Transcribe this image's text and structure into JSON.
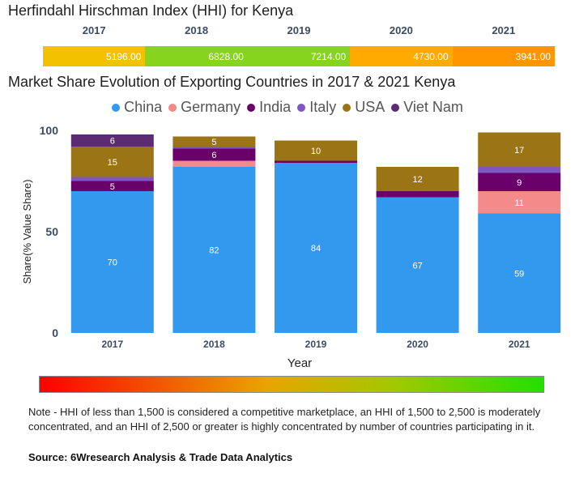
{
  "hhi": {
    "title": "Herfindahl Hirschman Index (HHI) for Kenya",
    "years": [
      "2017",
      "2018",
      "2019",
      "2020",
      "2021"
    ],
    "values": [
      "5196.00",
      "6828.00",
      "7214.00",
      "4730.00",
      "3941.00"
    ],
    "colors": [
      "#f2c200",
      "#86d41e",
      "#86d41e",
      "#ffaa00",
      "#ff9600"
    ]
  },
  "chart_data": {
    "type": "stacked-bar",
    "title": "Market Share Evolution of Exporting Countries in 2017 & 2021 Kenya",
    "xlabel": "Year",
    "ylabel": "Share(% Value Share)",
    "ylim": [
      0,
      100
    ],
    "yticks": [
      "0",
      "50",
      "100"
    ],
    "categories": [
      "2017",
      "2018",
      "2019",
      "2020",
      "2021"
    ],
    "series": [
      {
        "name": "China",
        "color": "#3399ee",
        "values": [
          70,
          82,
          84,
          67,
          59
        ]
      },
      {
        "name": "Germany",
        "color": "#f48a8a",
        "values": [
          0,
          3,
          0,
          0,
          11
        ]
      },
      {
        "name": "India",
        "color": "#6a006a",
        "values": [
          5,
          6,
          1,
          3,
          9
        ]
      },
      {
        "name": "Italy",
        "color": "#7e57c2",
        "values": [
          2,
          1,
          0,
          0,
          3
        ]
      },
      {
        "name": "USA",
        "color": "#9b7415",
        "values": [
          15,
          5,
          10,
          12,
          17
        ]
      },
      {
        "name": "Viet Nam",
        "color": "#5b2c73",
        "values": [
          6,
          0,
          0,
          0,
          0
        ]
      }
    ],
    "segment_labels": [
      {
        "values": [
          "70",
          "82",
          "84",
          "67",
          "59"
        ]
      },
      {
        "values": [
          "",
          "",
          "",
          "",
          "11"
        ]
      },
      {
        "values": [
          "5",
          "6",
          "",
          "",
          "9"
        ]
      },
      {
        "values": [
          "",
          "",
          "",
          "",
          ""
        ]
      },
      {
        "values": [
          "15",
          "5",
          "10",
          "12",
          "17"
        ]
      },
      {
        "values": [
          "6",
          "",
          "",
          "",
          ""
        ]
      }
    ]
  },
  "scale": {
    "colors": [
      "#ff0000",
      "#e8a400",
      "#a4c800",
      "#22e000"
    ]
  },
  "note": "Note - HHI of less than 1,500 is considered a competitive marketplace, an HHI of 1,500 to 2,500 is moderately concentrated, and an HHI of 2,500 or greater is highly concentrated by number of countries participating in it.",
  "source": "Source: 6Wresearch Analysis & Trade Data Analytics"
}
